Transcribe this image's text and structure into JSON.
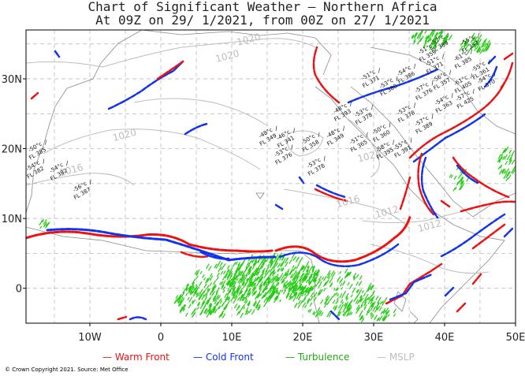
{
  "title": {
    "line1": "Chart of Significant Weather — Northern Africa",
    "line2": "At 09Z on 29/ 1/2021, from 00Z on 27/ 1/2021"
  },
  "axes": {
    "lon_range": [
      -19,
      50
    ],
    "lat_range": [
      -5,
      37
    ],
    "x_ticks": [
      {
        "v": -10,
        "label": "10W"
      },
      {
        "v": 0,
        "label": "0"
      },
      {
        "v": 10,
        "label": "10E"
      },
      {
        "v": 20,
        "label": "20E"
      },
      {
        "v": 30,
        "label": "30E"
      },
      {
        "v": 40,
        "label": "40E"
      },
      {
        "v": 50,
        "label": "50E"
      }
    ],
    "y_ticks": [
      {
        "v": 30,
        "label": "30N"
      },
      {
        "v": 20,
        "label": "20N"
      },
      {
        "v": 10,
        "label": "10N"
      },
      {
        "v": 0,
        "label": "0"
      }
    ],
    "grid_lon": [
      -15,
      -10,
      -5,
      0,
      5,
      10,
      15,
      20,
      25,
      30,
      35,
      40,
      45
    ],
    "grid_lat": [
      35,
      30,
      25,
      20,
      15,
      10,
      5,
      0
    ]
  },
  "isobar_labels": [
    {
      "text": "1020",
      "lon": 12.5,
      "lat": 35.2
    },
    {
      "text": "1020",
      "lon": 9.5,
      "lat": 32.8
    },
    {
      "text": "1020",
      "lon": -5.0,
      "lat": 21.5
    },
    {
      "text": "1016",
      "lon": -12.5,
      "lat": 16.5
    },
    {
      "text": "1024",
      "lon": 29.5,
      "lat": 18.5
    },
    {
      "text": "1016",
      "lon": 26.5,
      "lat": 12.0
    },
    {
      "text": "1012",
      "lon": 32.0,
      "lat": 10.5
    },
    {
      "text": "1012",
      "lon": 38.0,
      "lat": 8.5
    }
  ],
  "tropopause": [
    {
      "temp": "-50°c",
      "fl": "FL 385",
      "lon": -18.5,
      "lat": 19.5
    },
    {
      "temp": "-54°c",
      "fl": "FL 382",
      "lon": -18.8,
      "lat": 16.8
    },
    {
      "temp": "-54°c",
      "fl": "FL 382",
      "lon": -15.5,
      "lat": 16.5
    },
    {
      "temp": "-56°c",
      "fl": "FL 387",
      "lon": -12.2,
      "lat": 13.8
    },
    {
      "temp": "-48°c",
      "fl": "FL 349",
      "lon": 14.0,
      "lat": 21.5
    },
    {
      "temp": "-46°c",
      "fl": "FL 341",
      "lon": 16.5,
      "lat": 21.2
    },
    {
      "temp": "-53°c",
      "fl": "FL 376",
      "lon": 16.2,
      "lat": 18.8
    },
    {
      "temp": "-50°c",
      "fl": "FL 358",
      "lon": 20.0,
      "lat": 20.6
    },
    {
      "temp": "-48°c",
      "fl": "FL 349",
      "lon": 23.5,
      "lat": 21.5
    },
    {
      "temp": "-51°c",
      "fl": "FL 365",
      "lon": 26.8,
      "lat": 20.6
    },
    {
      "temp": "-53°c",
      "fl": "FL 378",
      "lon": 20.8,
      "lat": 17.2
    },
    {
      "temp": "-48°c",
      "fl": "FL 393",
      "lon": 24.5,
      "lat": 25.0
    },
    {
      "temp": "-53°c",
      "fl": "FL 378",
      "lon": 27.5,
      "lat": 24.5
    },
    {
      "temp": "-50°c",
      "fl": "FL 360",
      "lon": 30.0,
      "lat": 22.0
    },
    {
      "temp": "-58°c",
      "fl": "FL 395",
      "lon": 30.5,
      "lat": 19.5
    },
    {
      "temp": "-55°c",
      "fl": "FL 391",
      "lon": 33.0,
      "lat": 19.8
    },
    {
      "temp": "-53°c",
      "fl": "FL 378",
      "lon": 33.5,
      "lat": 24.8
    },
    {
      "temp": "-57°c",
      "fl": "FL 389",
      "lon": 36.0,
      "lat": 23.2
    },
    {
      "temp": "-51°c",
      "fl": "FL 371",
      "lon": 28.5,
      "lat": 29.8
    },
    {
      "temp": "-53°c",
      "fl": "FL 380",
      "lon": 31.0,
      "lat": 28.6
    },
    {
      "temp": "-54°c",
      "fl": "FL 386",
      "lon": 33.5,
      "lat": 30.4
    },
    {
      "temp": "-57°c",
      "fl": "FL 376",
      "lon": 36.0,
      "lat": 28.0
    },
    {
      "temp": "-56°c",
      "fl": "FL 357",
      "lon": 38.5,
      "lat": 29.5
    },
    {
      "temp": "-54°c",
      "fl": "FL 363",
      "lon": 38.8,
      "lat": 26.2
    },
    {
      "temp": "-61°c",
      "fl": "FL 385",
      "lon": 41.5,
      "lat": 32.5
    },
    {
      "temp": "-61°c",
      "fl": "FL 405",
      "lon": 41.5,
      "lat": 29.0
    },
    {
      "temp": "-57°c",
      "fl": "FL 425",
      "lon": 41.8,
      "lat": 26.8
    },
    {
      "temp": "-55°c",
      "fl": "FL 361",
      "lon": 44.0,
      "lat": 31.0
    },
    {
      "temp": "-54°c",
      "fl": "FL 370",
      "lon": 44.8,
      "lat": 29.3
    },
    {
      "temp": "-51°c",
      "fl": "FL 359",
      "lon": 36.5,
      "lat": 33.5
    },
    {
      "temp": "-51°c",
      "fl": "FL 371",
      "lon": 37.5,
      "lat": 31.8
    },
    {
      "temp": "-57°c",
      "fl": "FL 389",
      "lon": 38.2,
      "lat": 34.8
    },
    {
      "temp": "-55°c",
      "fl": "FL 357",
      "lon": 42.5,
      "lat": 34.8
    }
  ],
  "legend": {
    "warm": "Warm Front",
    "cold": "Cold Front",
    "turb": "Turbulence",
    "mslp": "MSLP"
  },
  "colors": {
    "warm": "#ee1111",
    "cold": "#1133ee",
    "turb": "#22cc11",
    "mslp": "#bdbdbd",
    "grid": "#b0b0b0",
    "coast": "#888888"
  },
  "copyright": "© Crown Copyright 2021. Source: Met Office"
}
